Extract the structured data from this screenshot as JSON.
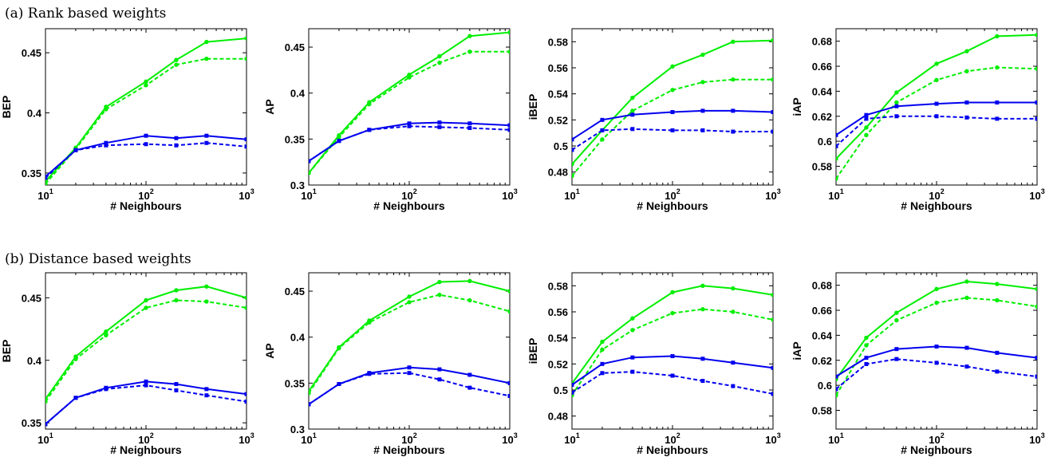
{
  "section_titles": [
    "(a) Rank based weights",
    "(b) Distance based weights"
  ],
  "chart_data": [
    {
      "type": "line",
      "row": 0,
      "x_scale": "log",
      "xlabel": "# Neighbours",
      "ylabel": "BEP",
      "xlim": [
        10,
        1000
      ],
      "ylim": [
        0.34,
        0.47
      ],
      "x_ticks": [
        10,
        100,
        1000
      ],
      "y_ticks": [
        0.35,
        0.4,
        0.45
      ],
      "y_tick_labels": [
        "0.35",
        "0.4",
        "0.45"
      ],
      "series": [
        {
          "color": "#00ee00",
          "line": "solid",
          "marker": "circle",
          "x": [
            10,
            20,
            40,
            100,
            200,
            400,
            1000
          ],
          "y": [
            0.343,
            0.371,
            0.405,
            0.426,
            0.444,
            0.459,
            0.462
          ]
        },
        {
          "color": "#00ee00",
          "line": "dashed",
          "marker": "circle",
          "x": [
            10,
            20,
            40,
            100,
            200,
            400,
            1000
          ],
          "y": [
            0.341,
            0.37,
            0.403,
            0.423,
            0.44,
            0.445,
            0.445
          ]
        },
        {
          "color": "#0000ee",
          "line": "solid",
          "marker": "square",
          "x": [
            10,
            20,
            40,
            100,
            200,
            400,
            1000
          ],
          "y": [
            0.347,
            0.369,
            0.375,
            0.381,
            0.379,
            0.381,
            0.378
          ]
        },
        {
          "color": "#0000ee",
          "line": "dashed",
          "marker": "square",
          "x": [
            10,
            20,
            40,
            100,
            200,
            400,
            1000
          ],
          "y": [
            0.346,
            0.369,
            0.373,
            0.374,
            0.373,
            0.375,
            0.372
          ]
        }
      ]
    },
    {
      "type": "line",
      "row": 0,
      "x_scale": "log",
      "xlabel": "# Neighbours",
      "ylabel": "AP",
      "xlim": [
        10,
        1000
      ],
      "ylim": [
        0.3,
        0.47
      ],
      "x_ticks": [
        10,
        100,
        1000
      ],
      "y_ticks": [
        0.3,
        0.35,
        0.4,
        0.45
      ],
      "y_tick_labels": [
        "0.3",
        "0.35",
        "0.4",
        "0.45"
      ],
      "series": [
        {
          "color": "#00ee00",
          "line": "solid",
          "marker": "circle",
          "x": [
            10,
            20,
            40,
            100,
            200,
            400,
            1000
          ],
          "y": [
            0.313,
            0.354,
            0.39,
            0.42,
            0.44,
            0.462,
            0.466
          ]
        },
        {
          "color": "#00ee00",
          "line": "dashed",
          "marker": "circle",
          "x": [
            10,
            20,
            40,
            100,
            200,
            400,
            1000
          ],
          "y": [
            0.313,
            0.352,
            0.388,
            0.417,
            0.433,
            0.445,
            0.445
          ]
        },
        {
          "color": "#0000ee",
          "line": "solid",
          "marker": "square",
          "x": [
            10,
            20,
            40,
            100,
            200,
            400,
            1000
          ],
          "y": [
            0.326,
            0.348,
            0.36,
            0.367,
            0.368,
            0.367,
            0.365
          ]
        },
        {
          "color": "#0000ee",
          "line": "dashed",
          "marker": "square",
          "x": [
            10,
            20,
            40,
            100,
            200,
            400,
            1000
          ],
          "y": [
            0.326,
            0.348,
            0.36,
            0.364,
            0.363,
            0.362,
            0.36
          ]
        }
      ]
    },
    {
      "type": "line",
      "row": 0,
      "x_scale": "log",
      "xlabel": "# Neighbours",
      "ylabel": "iBEP",
      "xlim": [
        10,
        1000
      ],
      "ylim": [
        0.47,
        0.59
      ],
      "x_ticks": [
        10,
        100,
        1000
      ],
      "y_ticks": [
        0.48,
        0.5,
        0.52,
        0.54,
        0.56,
        0.58
      ],
      "y_tick_labels": [
        "0.48",
        "0.5",
        "0.52",
        "0.54",
        "0.56",
        "0.58"
      ],
      "series": [
        {
          "color": "#00ee00",
          "line": "solid",
          "marker": "circle",
          "x": [
            10,
            20,
            40,
            100,
            200,
            400,
            1000
          ],
          "y": [
            0.486,
            0.512,
            0.537,
            0.561,
            0.57,
            0.58,
            0.581
          ]
        },
        {
          "color": "#00ee00",
          "line": "dashed",
          "marker": "circle",
          "x": [
            10,
            20,
            40,
            100,
            200,
            400,
            1000
          ],
          "y": [
            0.477,
            0.505,
            0.527,
            0.543,
            0.549,
            0.551,
            0.551
          ]
        },
        {
          "color": "#0000ee",
          "line": "solid",
          "marker": "square",
          "x": [
            10,
            20,
            40,
            100,
            200,
            400,
            1000
          ],
          "y": [
            0.505,
            0.52,
            0.524,
            0.526,
            0.527,
            0.527,
            0.526
          ]
        },
        {
          "color": "#0000ee",
          "line": "dashed",
          "marker": "square",
          "x": [
            10,
            20,
            40,
            100,
            200,
            400,
            1000
          ],
          "y": [
            0.497,
            0.512,
            0.513,
            0.512,
            0.512,
            0.511,
            0.511
          ]
        }
      ]
    },
    {
      "type": "line",
      "row": 0,
      "x_scale": "log",
      "xlabel": "# Neighbours",
      "ylabel": "iAP",
      "xlim": [
        10,
        1000
      ],
      "ylim": [
        0.565,
        0.69
      ],
      "x_ticks": [
        10,
        100,
        1000
      ],
      "y_ticks": [
        0.58,
        0.6,
        0.62,
        0.64,
        0.66,
        0.68
      ],
      "y_tick_labels": [
        "0.58",
        "0.6",
        "0.62",
        "0.64",
        "0.66",
        "0.68"
      ],
      "series": [
        {
          "color": "#00ee00",
          "line": "solid",
          "marker": "circle",
          "x": [
            10,
            20,
            40,
            100,
            200,
            400,
            1000
          ],
          "y": [
            0.586,
            0.611,
            0.639,
            0.662,
            0.672,
            0.684,
            0.685
          ]
        },
        {
          "color": "#00ee00",
          "line": "dashed",
          "marker": "circle",
          "x": [
            10,
            20,
            40,
            100,
            200,
            400,
            1000
          ],
          "y": [
            0.57,
            0.605,
            0.631,
            0.649,
            0.656,
            0.659,
            0.658
          ]
        },
        {
          "color": "#0000ee",
          "line": "solid",
          "marker": "square",
          "x": [
            10,
            20,
            40,
            100,
            200,
            400,
            1000
          ],
          "y": [
            0.605,
            0.621,
            0.628,
            0.63,
            0.631,
            0.631,
            0.631
          ]
        },
        {
          "color": "#0000ee",
          "line": "dashed",
          "marker": "square",
          "x": [
            10,
            20,
            40,
            100,
            200,
            400,
            1000
          ],
          "y": [
            0.596,
            0.618,
            0.62,
            0.62,
            0.619,
            0.618,
            0.618
          ]
        }
      ]
    },
    {
      "type": "line",
      "row": 1,
      "x_scale": "log",
      "xlabel": "# Neighbours",
      "ylabel": "BEP",
      "xlim": [
        10,
        1000
      ],
      "ylim": [
        0.345,
        0.47
      ],
      "x_ticks": [
        10,
        100,
        1000
      ],
      "y_ticks": [
        0.35,
        0.4,
        0.45
      ],
      "y_tick_labels": [
        "0.35",
        "0.4",
        "0.45"
      ],
      "series": [
        {
          "color": "#00ee00",
          "line": "solid",
          "marker": "circle",
          "x": [
            10,
            20,
            40,
            100,
            200,
            400,
            1000
          ],
          "y": [
            0.369,
            0.403,
            0.423,
            0.448,
            0.456,
            0.459,
            0.45
          ]
        },
        {
          "color": "#00ee00",
          "line": "dashed",
          "marker": "circle",
          "x": [
            10,
            20,
            40,
            100,
            200,
            400,
            1000
          ],
          "y": [
            0.367,
            0.401,
            0.42,
            0.442,
            0.448,
            0.447,
            0.442
          ]
        },
        {
          "color": "#0000ee",
          "line": "solid",
          "marker": "square",
          "x": [
            10,
            20,
            40,
            100,
            200,
            400,
            1000
          ],
          "y": [
            0.349,
            0.37,
            0.378,
            0.383,
            0.381,
            0.377,
            0.373
          ]
        },
        {
          "color": "#0000ee",
          "line": "dashed",
          "marker": "square",
          "x": [
            10,
            20,
            40,
            100,
            200,
            400,
            1000
          ],
          "y": [
            0.349,
            0.37,
            0.377,
            0.38,
            0.376,
            0.372,
            0.367
          ]
        }
      ]
    },
    {
      "type": "line",
      "row": 1,
      "x_scale": "log",
      "xlabel": "# Neighbours",
      "ylabel": "AP",
      "xlim": [
        10,
        1000
      ],
      "ylim": [
        0.3,
        0.47
      ],
      "x_ticks": [
        10,
        100,
        1000
      ],
      "y_ticks": [
        0.3,
        0.35,
        0.4,
        0.45
      ],
      "y_tick_labels": [
        "0.3",
        "0.35",
        "0.4",
        "0.45"
      ],
      "series": [
        {
          "color": "#00ee00",
          "line": "solid",
          "marker": "circle",
          "x": [
            10,
            20,
            40,
            100,
            200,
            400,
            1000
          ],
          "y": [
            0.341,
            0.389,
            0.418,
            0.444,
            0.46,
            0.461,
            0.45
          ]
        },
        {
          "color": "#00ee00",
          "line": "dashed",
          "marker": "circle",
          "x": [
            10,
            20,
            40,
            100,
            200,
            400,
            1000
          ],
          "y": [
            0.339,
            0.388,
            0.416,
            0.438,
            0.446,
            0.44,
            0.428
          ]
        },
        {
          "color": "#0000ee",
          "line": "solid",
          "marker": "square",
          "x": [
            10,
            20,
            40,
            100,
            200,
            400,
            1000
          ],
          "y": [
            0.327,
            0.349,
            0.361,
            0.367,
            0.365,
            0.359,
            0.35
          ]
        },
        {
          "color": "#0000ee",
          "line": "dashed",
          "marker": "square",
          "x": [
            10,
            20,
            40,
            100,
            200,
            400,
            1000
          ],
          "y": [
            0.327,
            0.349,
            0.36,
            0.361,
            0.354,
            0.345,
            0.336
          ]
        }
      ]
    },
    {
      "type": "line",
      "row": 1,
      "x_scale": "log",
      "xlabel": "# Neighbours",
      "ylabel": "iBEP",
      "xlim": [
        10,
        1000
      ],
      "ylim": [
        0.47,
        0.59
      ],
      "x_ticks": [
        10,
        100,
        1000
      ],
      "y_ticks": [
        0.48,
        0.5,
        0.52,
        0.54,
        0.56,
        0.58
      ],
      "y_tick_labels": [
        "0.48",
        "0.5",
        "0.52",
        "0.54",
        "0.56",
        "0.58"
      ],
      "series": [
        {
          "color": "#00ee00",
          "line": "solid",
          "marker": "circle",
          "x": [
            10,
            20,
            40,
            100,
            200,
            400,
            1000
          ],
          "y": [
            0.505,
            0.537,
            0.555,
            0.575,
            0.58,
            0.578,
            0.573
          ]
        },
        {
          "color": "#00ee00",
          "line": "dashed",
          "marker": "circle",
          "x": [
            10,
            20,
            40,
            100,
            200,
            400,
            1000
          ],
          "y": [
            0.496,
            0.531,
            0.546,
            0.559,
            0.562,
            0.56,
            0.554
          ]
        },
        {
          "color": "#0000ee",
          "line": "solid",
          "marker": "square",
          "x": [
            10,
            20,
            40,
            100,
            200,
            400,
            1000
          ],
          "y": [
            0.504,
            0.52,
            0.525,
            0.526,
            0.524,
            0.521,
            0.517
          ]
        },
        {
          "color": "#0000ee",
          "line": "dashed",
          "marker": "square",
          "x": [
            10,
            20,
            40,
            100,
            200,
            400,
            1000
          ],
          "y": [
            0.498,
            0.513,
            0.514,
            0.511,
            0.507,
            0.503,
            0.497
          ]
        }
      ]
    },
    {
      "type": "line",
      "row": 1,
      "x_scale": "log",
      "xlabel": "# Neighbours",
      "ylabel": "iAP",
      "xlim": [
        10,
        1000
      ],
      "ylim": [
        0.565,
        0.69
      ],
      "x_ticks": [
        10,
        100,
        1000
      ],
      "y_ticks": [
        0.58,
        0.6,
        0.62,
        0.64,
        0.66,
        0.68
      ],
      "y_tick_labels": [
        "0.58",
        "0.6",
        "0.62",
        "0.64",
        "0.66",
        "0.68"
      ],
      "series": [
        {
          "color": "#00ee00",
          "line": "solid",
          "marker": "circle",
          "x": [
            10,
            20,
            40,
            100,
            200,
            400,
            1000
          ],
          "y": [
            0.605,
            0.638,
            0.658,
            0.677,
            0.683,
            0.681,
            0.677
          ]
        },
        {
          "color": "#00ee00",
          "line": "dashed",
          "marker": "circle",
          "x": [
            10,
            20,
            40,
            100,
            200,
            400,
            1000
          ],
          "y": [
            0.592,
            0.632,
            0.652,
            0.666,
            0.67,
            0.668,
            0.663
          ]
        },
        {
          "color": "#0000ee",
          "line": "solid",
          "marker": "square",
          "x": [
            10,
            20,
            40,
            100,
            200,
            400,
            1000
          ],
          "y": [
            0.607,
            0.622,
            0.629,
            0.631,
            0.63,
            0.626,
            0.622
          ]
        },
        {
          "color": "#0000ee",
          "line": "dashed",
          "marker": "square",
          "x": [
            10,
            20,
            40,
            100,
            200,
            400,
            1000
          ],
          "y": [
            0.597,
            0.617,
            0.621,
            0.618,
            0.615,
            0.611,
            0.607
          ]
        }
      ]
    }
  ]
}
